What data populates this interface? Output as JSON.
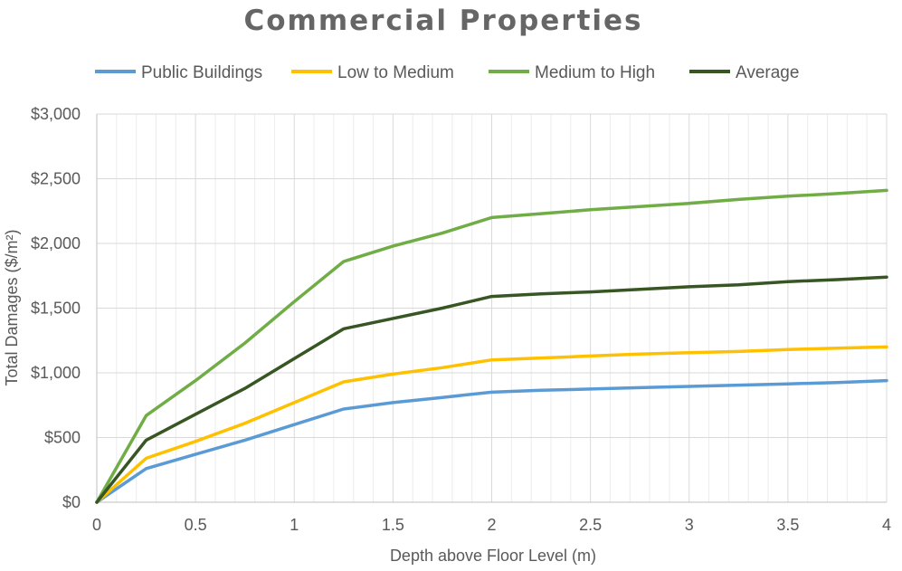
{
  "chart_data": {
    "type": "line",
    "title": "Commercial Properties",
    "xlabel": "Depth above Floor Level (m)",
    "ylabel": "Total Damages ($/m²)",
    "xlim": [
      0,
      4
    ],
    "ylim": [
      0,
      3000
    ],
    "xticks": [
      0,
      0.5,
      1,
      1.5,
      2,
      2.5,
      3,
      3.5,
      4
    ],
    "xtick_labels": [
      "0",
      "0.5",
      "1",
      "1.5",
      "2",
      "2.5",
      "3",
      "3.5",
      "4"
    ],
    "yticks": [
      0,
      500,
      1000,
      1500,
      2000,
      2500,
      3000
    ],
    "ytick_labels": [
      "$0",
      "$500",
      "$1,000",
      "$1,500",
      "$2,000",
      "$2,500",
      "$3,000"
    ],
    "grid": true,
    "legend_position": "top",
    "series": [
      {
        "name": "Public Buildings",
        "color": "#5b9bd5",
        "points": [
          [
            0,
            0
          ],
          [
            0.25,
            260
          ],
          [
            0.5,
            370
          ],
          [
            0.75,
            480
          ],
          [
            1,
            600
          ],
          [
            1.25,
            720
          ],
          [
            1.5,
            770
          ],
          [
            1.75,
            810
          ],
          [
            2,
            850
          ],
          [
            2.25,
            865
          ],
          [
            2.5,
            875
          ],
          [
            2.75,
            885
          ],
          [
            3,
            895
          ],
          [
            3.25,
            905
          ],
          [
            3.5,
            915
          ],
          [
            3.75,
            925
          ],
          [
            4,
            940
          ]
        ]
      },
      {
        "name": "Low to Medium",
        "color": "#ffc000",
        "points": [
          [
            0,
            0
          ],
          [
            0.25,
            340
          ],
          [
            0.5,
            470
          ],
          [
            0.75,
            610
          ],
          [
            1,
            770
          ],
          [
            1.25,
            930
          ],
          [
            1.5,
            990
          ],
          [
            1.75,
            1040
          ],
          [
            2,
            1100
          ],
          [
            2.25,
            1115
          ],
          [
            2.5,
            1130
          ],
          [
            2.75,
            1145
          ],
          [
            3,
            1155
          ],
          [
            3.25,
            1165
          ],
          [
            3.5,
            1180
          ],
          [
            3.75,
            1190
          ],
          [
            4,
            1200
          ]
        ]
      },
      {
        "name": "Medium to High",
        "color": "#70ad47",
        "points": [
          [
            0,
            0
          ],
          [
            0.25,
            670
          ],
          [
            0.5,
            940
          ],
          [
            0.75,
            1230
          ],
          [
            1,
            1550
          ],
          [
            1.25,
            1860
          ],
          [
            1.5,
            1980
          ],
          [
            1.75,
            2080
          ],
          [
            2,
            2200
          ],
          [
            2.25,
            2230
          ],
          [
            2.5,
            2260
          ],
          [
            2.75,
            2285
          ],
          [
            3,
            2310
          ],
          [
            3.25,
            2340
          ],
          [
            3.5,
            2365
          ],
          [
            3.75,
            2385
          ],
          [
            4,
            2410
          ]
        ]
      },
      {
        "name": "Average",
        "color": "#375623",
        "points": [
          [
            0,
            0
          ],
          [
            0.25,
            480
          ],
          [
            0.5,
            680
          ],
          [
            0.75,
            880
          ],
          [
            1,
            1110
          ],
          [
            1.25,
            1340
          ],
          [
            1.5,
            1420
          ],
          [
            1.75,
            1500
          ],
          [
            2,
            1590
          ],
          [
            2.25,
            1610
          ],
          [
            2.5,
            1625
          ],
          [
            2.75,
            1645
          ],
          [
            3,
            1665
          ],
          [
            3.25,
            1680
          ],
          [
            3.5,
            1705
          ],
          [
            3.75,
            1720
          ],
          [
            4,
            1740
          ]
        ]
      }
    ]
  }
}
